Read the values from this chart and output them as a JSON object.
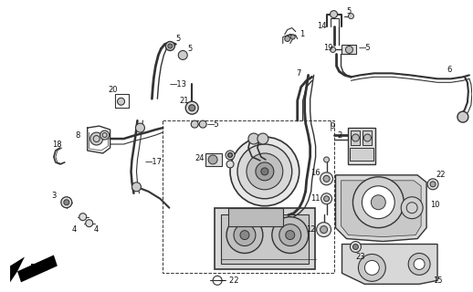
{
  "bg_color": "#ffffff",
  "line_color": "#333333",
  "fig_width": 5.18,
  "fig_height": 3.2,
  "dpi": 100
}
